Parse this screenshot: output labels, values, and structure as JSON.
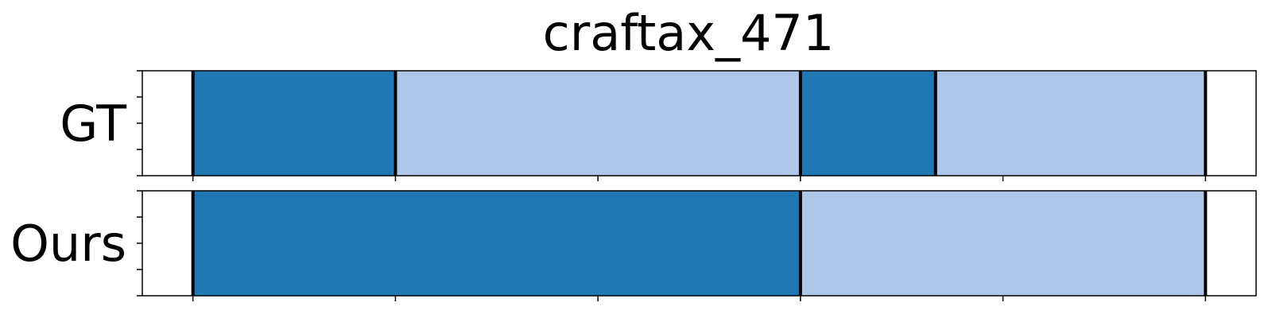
{
  "chart_data": {
    "type": "bar",
    "title": "craftax_471",
    "xlim": [
      -0.25,
      5.25
    ],
    "x_ticks": [
      0,
      1,
      2,
      3,
      4,
      5
    ],
    "show_tick_labels": false,
    "grid": false,
    "colors": {
      "dark": "#1f77b4",
      "light": "#aec7e8",
      "boundary": "#000000"
    },
    "rows": [
      {
        "label": "GT",
        "segments": [
          {
            "start": 0,
            "end": 1,
            "color": "dark"
          },
          {
            "start": 1,
            "end": 3,
            "color": "light"
          },
          {
            "start": 3,
            "end": 3.667,
            "color": "dark"
          },
          {
            "start": 3.667,
            "end": 5,
            "color": "light"
          }
        ],
        "boundaries": [
          0,
          1,
          3,
          3.667,
          5
        ]
      },
      {
        "label": "Ours",
        "segments": [
          {
            "start": 0,
            "end": 3,
            "color": "dark"
          },
          {
            "start": 3,
            "end": 5,
            "color": "light"
          }
        ],
        "boundaries": [
          0,
          3,
          5
        ]
      }
    ]
  }
}
